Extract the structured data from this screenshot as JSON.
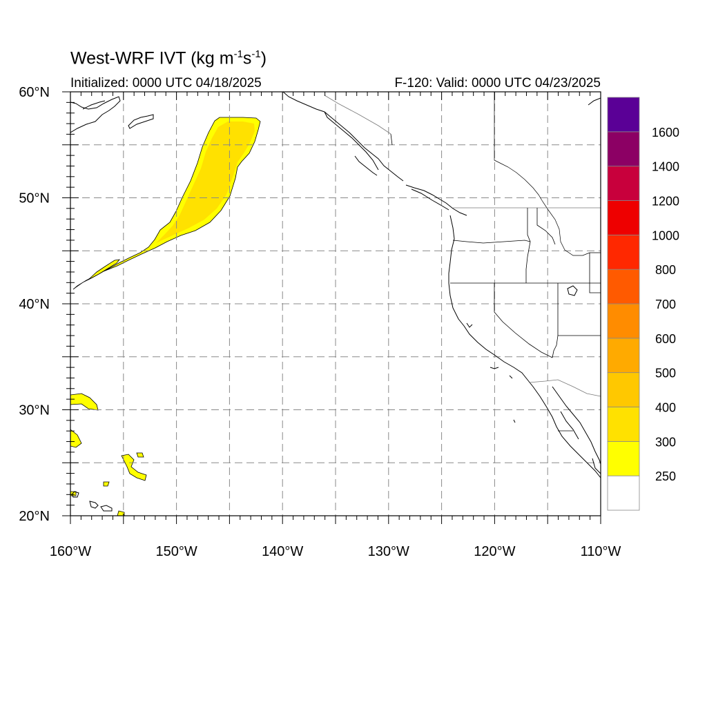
{
  "title": {
    "main": "West-WRF IVT (kg m",
    "sup1": "-1",
    "mid": "s",
    "sup2": "-1",
    "end": ")"
  },
  "subtitle": {
    "left": "Initialized: 0000 UTC 04/18/2025",
    "right": "F-120: Valid: 0000 UTC 04/23/2025"
  },
  "axes": {
    "lat_labels": [
      {
        "text": "60°N",
        "lat": 60
      },
      {
        "text": "50°N",
        "lat": 50
      },
      {
        "text": "40°N",
        "lat": 40
      },
      {
        "text": "30°N",
        "lat": 30
      },
      {
        "text": "20°N",
        "lat": 20
      }
    ],
    "lon_labels": [
      {
        "text": "160°W",
        "lon": -160
      },
      {
        "text": "150°W",
        "lon": -150
      },
      {
        "text": "140°W",
        "lon": -140
      },
      {
        "text": "130°W",
        "lon": -130
      },
      {
        "text": "120°W",
        "lon": -120
      },
      {
        "text": "110°W",
        "lon": -110
      }
    ],
    "lat_range": [
      20,
      60
    ],
    "lon_range": [
      -160,
      -110
    ],
    "grid_spacing_deg": 5,
    "grid": true
  },
  "colorbar": {
    "levels": [
      "250",
      "300",
      "400",
      "500",
      "600",
      "700",
      "800",
      "1000",
      "1200",
      "1400",
      "1600"
    ],
    "colors": [
      "#ffffff",
      "#ffff00",
      "#ffe100",
      "#ffc800",
      "#ffaa00",
      "#ff8c00",
      "#ff5a00",
      "#ff2800",
      "#ee0000",
      "#c8003c",
      "#8c0064",
      "#5a0096"
    ]
  },
  "ivt_colors": {
    "outer": "#ffff00",
    "inner": "#ffe100"
  }
}
